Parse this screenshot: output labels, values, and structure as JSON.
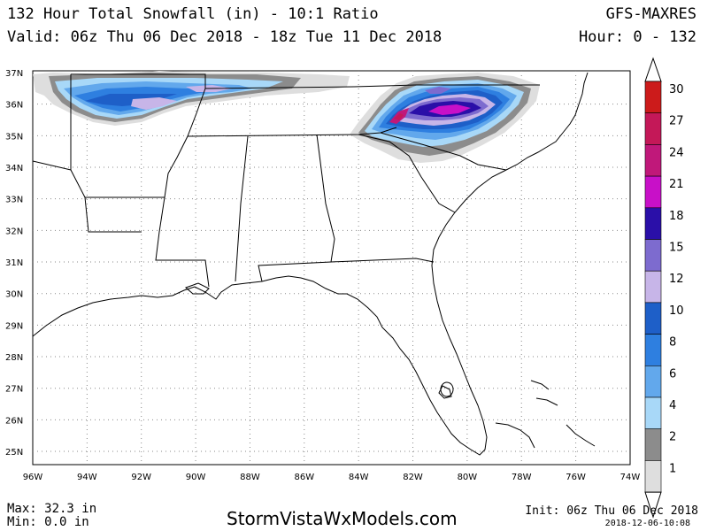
{
  "header": {
    "title": "132 Hour Total Snowfall (in) - 10:1 Ratio",
    "valid": "Valid: 06z Thu 06 Dec 2018 - 18z Tue 11 Dec 2018",
    "model": "GFS-MAXRES",
    "hours": "Hour: 0 - 132"
  },
  "axes": {
    "lat_labels": [
      "37N",
      "36N",
      "35N",
      "34N",
      "33N",
      "32N",
      "31N",
      "30N",
      "29N",
      "28N",
      "27N",
      "26N",
      "25N"
    ],
    "lon_labels": [
      "96W",
      "94W",
      "92W",
      "90W",
      "88W",
      "86W",
      "84W",
      "82W",
      "80W",
      "78W",
      "76W",
      "74W"
    ]
  },
  "legend": {
    "labels": [
      "30",
      "27",
      "24",
      "21",
      "18",
      "15",
      "12",
      "10",
      "8",
      "6",
      "4",
      "2",
      "1"
    ],
    "colors": [
      "#cc1b1b",
      "#c41858",
      "#c0187a",
      "#c810c8",
      "#2a0fa8",
      "#7d6bcf",
      "#c7b5e8",
      "#1e5fc8",
      "#2e7fe0",
      "#62a8ec",
      "#a8d8f8",
      "#8c8c8c",
      "#dedede"
    ]
  },
  "footer": {
    "max": "Max: 32.3 in",
    "min": "Min: 0.0 in",
    "site": "StormVistaWxModels.com",
    "init": "Init: 06z Thu 06 Dec 2018",
    "stamp": "2018-12-06-10:08"
  }
}
